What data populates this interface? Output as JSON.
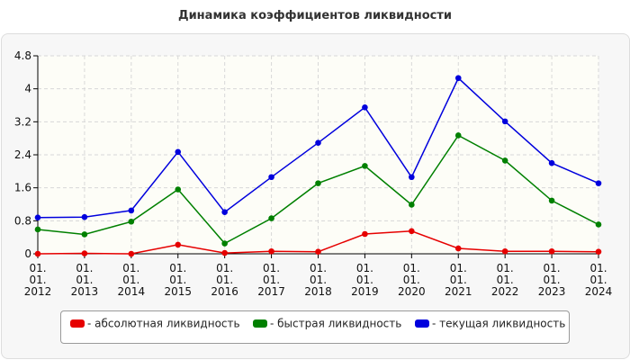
{
  "chart_data": {
    "type": "line",
    "title": "Динамика коэффициентов ликвидности",
    "xlabel": "",
    "ylabel": "",
    "categories": [
      "01.\n01.\n2012",
      "01.\n01.\n2013",
      "01.\n01.\n2014",
      "01.\n01.\n2015",
      "01.\n01.\n2016",
      "01.\n01.\n2017",
      "01.\n01.\n2018",
      "01.\n01.\n2019",
      "01.\n01.\n2020",
      "01.\n01.\n2021",
      "01.\n01.\n2022",
      "01.\n01.\n2023",
      "01.\n01.\n2024"
    ],
    "y_ticks": [
      "0",
      "0.8",
      "1.6",
      "2.4",
      "3.2",
      "4",
      "4.8"
    ],
    "ylim": [
      0,
      4.8
    ],
    "grid": true,
    "legend_position": "bottom",
    "series": [
      {
        "name": "- абсолютная ликвидность",
        "color": "#e60000",
        "values": [
          0.0,
          0.01,
          0.0,
          0.22,
          0.02,
          0.06,
          0.05,
          0.48,
          0.55,
          0.13,
          0.06,
          0.06,
          0.05
        ]
      },
      {
        "name": "- быстрая ликвидность",
        "color": "#008000",
        "values": [
          0.59,
          0.47,
          0.78,
          1.56,
          0.25,
          0.86,
          1.71,
          2.13,
          1.19,
          2.87,
          2.26,
          1.29,
          0.71
        ]
      },
      {
        "name": "- текущая ликвидность",
        "color": "#0000dd",
        "values": [
          0.88,
          0.89,
          1.05,
          2.47,
          1.01,
          1.86,
          2.69,
          3.55,
          1.86,
          4.26,
          3.21,
          2.2,
          1.71
        ]
      }
    ]
  }
}
